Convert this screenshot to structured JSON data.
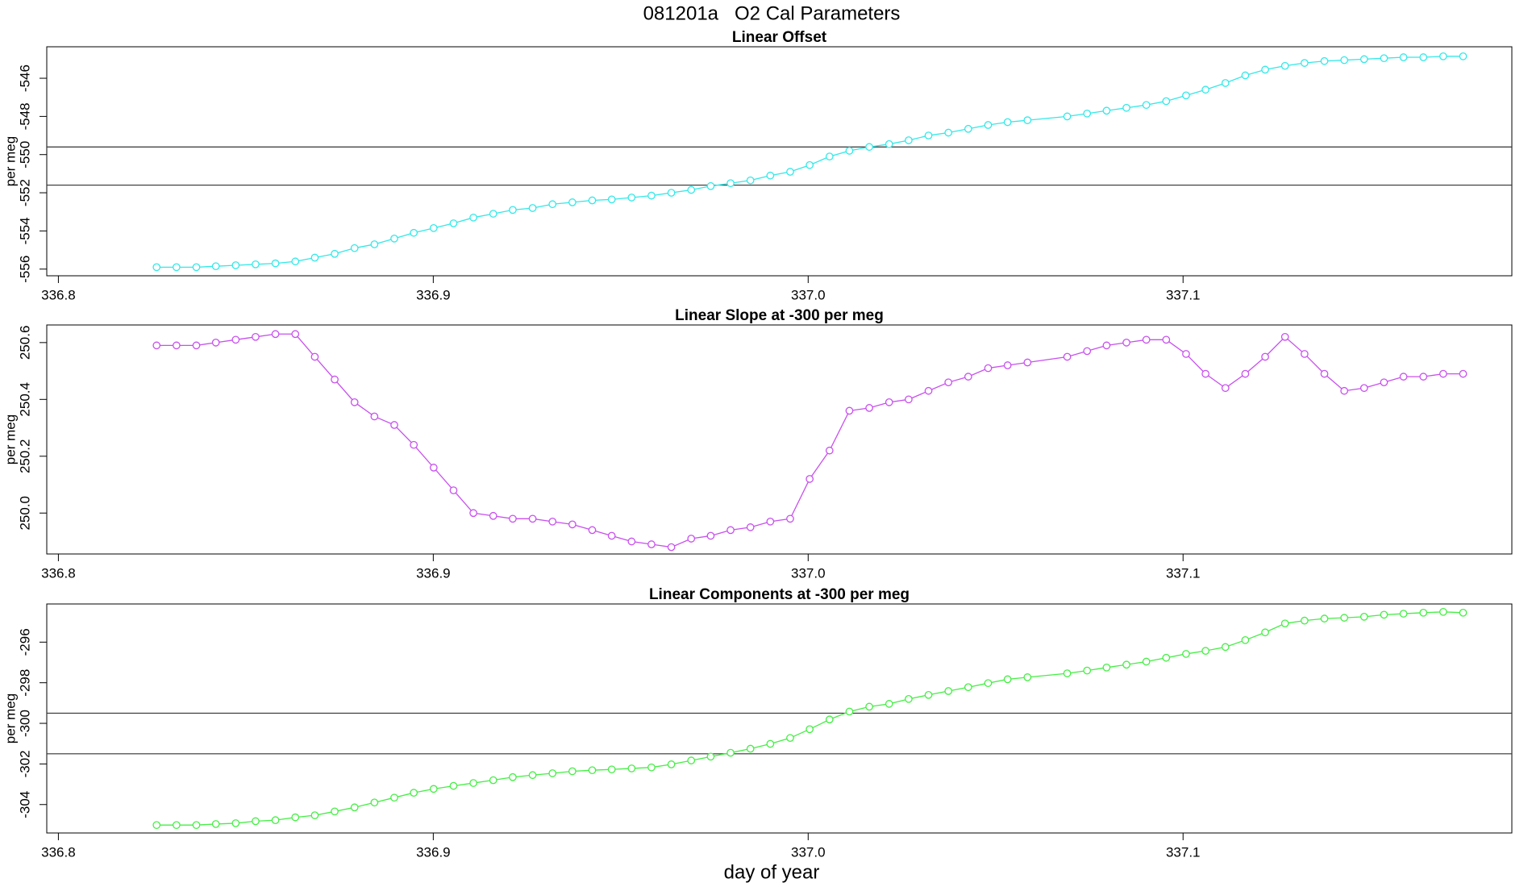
{
  "title": "081201a   O2 Cal Parameters",
  "xlabel": "day of year",
  "chart_data": [
    {
      "type": "line",
      "title": "Linear Offset",
      "ylabel": "per meg",
      "x": [
        336.8262,
        336.8315,
        336.8368,
        336.842,
        336.8473,
        336.8526,
        336.8579,
        336.8632,
        336.8684,
        336.8737,
        336.879,
        336.8843,
        336.8896,
        336.8948,
        336.9001,
        336.9054,
        336.9107,
        336.916,
        336.9212,
        336.9265,
        336.9318,
        336.9371,
        336.9424,
        336.9476,
        336.9529,
        336.9582,
        336.9635,
        336.9688,
        336.974,
        336.9793,
        336.9846,
        336.9899,
        336.9952,
        337.0004,
        337.0057,
        337.011,
        337.0163,
        337.0216,
        337.0268,
        337.0321,
        337.0374,
        337.0427,
        337.048,
        337.0532,
        337.0585,
        337.0691,
        337.0744,
        337.0796,
        337.0849,
        337.0902,
        337.0955,
        337.1008,
        337.106,
        337.1113,
        337.1166,
        337.1219,
        337.1272,
        337.1324,
        337.1377,
        337.143,
        337.1483,
        337.1536,
        337.1588,
        337.1641,
        337.1694,
        337.1747
      ],
      "series": [
        {
          "color": "#33e8e8",
          "values": [
            -555.9,
            -555.9,
            -555.9,
            -555.85,
            -555.8,
            -555.75,
            -555.7,
            -555.6,
            -555.4,
            -555.2,
            -554.9,
            -554.7,
            -554.4,
            -554.1,
            -553.85,
            -553.6,
            -553.3,
            -553.1,
            -552.9,
            -552.8,
            -552.6,
            -552.5,
            -552.4,
            -552.35,
            -552.25,
            -552.15,
            -552.0,
            -551.85,
            -551.65,
            -551.5,
            -551.35,
            -551.1,
            -550.9,
            -550.55,
            -550.1,
            -549.8,
            -549.6,
            -549.45,
            -549.25,
            -549.0,
            -548.85,
            -548.65,
            -548.45,
            -548.3,
            -548.2,
            -548.0,
            -547.85,
            -547.7,
            -547.55,
            -547.4,
            -547.2,
            -546.9,
            -546.6,
            -546.25,
            -545.85,
            -545.55,
            -545.35,
            -545.2,
            -545.1,
            -545.05,
            -545.0,
            -544.95,
            -544.9,
            -544.9,
            -544.85,
            -544.85
          ]
        }
      ],
      "hlines": [
        -549.6,
        -551.6
      ],
      "xlim": [
        336.7969,
        337.1877
      ],
      "xticks": [
        336.8,
        336.9,
        {
          "value": 337,
          "label": "337.0"
        },
        337.1
      ],
      "ylim": [
        -556.35,
        -544.35
      ],
      "yticks": [
        -546,
        -548,
        -550,
        -552,
        -554,
        -556
      ]
    },
    {
      "type": "line",
      "title": "Linear Slope at -300 per meg",
      "ylabel": "per meg",
      "x": [
        336.8262,
        336.8315,
        336.8368,
        336.842,
        336.8473,
        336.8526,
        336.8579,
        336.8632,
        336.8684,
        336.8737,
        336.879,
        336.8843,
        336.8896,
        336.8948,
        336.9001,
        336.9054,
        336.9107,
        336.916,
        336.9212,
        336.9265,
        336.9318,
        336.9371,
        336.9424,
        336.9476,
        336.9529,
        336.9582,
        336.9635,
        336.9688,
        336.974,
        336.9793,
        336.9846,
        336.9899,
        336.9952,
        337.0004,
        337.0057,
        337.011,
        337.0163,
        337.0216,
        337.0268,
        337.0321,
        337.0374,
        337.0427,
        337.048,
        337.0532,
        337.0585,
        337.0691,
        337.0744,
        337.0796,
        337.0849,
        337.0902,
        337.0955,
        337.1008,
        337.106,
        337.1113,
        337.1166,
        337.1219,
        337.1272,
        337.1324,
        337.1377,
        337.143,
        337.1483,
        337.1536,
        337.1588,
        337.1641,
        337.1694,
        337.1747
      ],
      "series": [
        {
          "color": "#c850ee",
          "values": [
            250.59,
            250.59,
            250.59,
            250.6,
            250.61,
            250.62,
            250.63,
            250.63,
            250.55,
            250.47,
            250.39,
            250.34,
            250.31,
            250.24,
            250.16,
            250.08,
            250.0,
            249.99,
            249.98,
            249.98,
            249.97,
            249.96,
            249.94,
            249.92,
            249.9,
            249.89,
            249.88,
            249.91,
            249.92,
            249.94,
            249.95,
            249.97,
            249.98,
            250.12,
            250.22,
            250.36,
            250.37,
            250.39,
            250.4,
            250.43,
            250.46,
            250.48,
            250.51,
            250.52,
            250.53,
            250.55,
            250.57,
            250.59,
            250.6,
            250.61,
            250.61,
            250.56,
            250.49,
            250.44,
            250.49,
            250.55,
            250.62,
            250.56,
            250.49,
            250.43,
            250.44,
            250.46,
            250.48,
            250.48,
            250.49,
            250.49
          ]
        }
      ],
      "xlim": [
        336.7969,
        337.1877
      ],
      "xticks": [
        336.8,
        336.9,
        {
          "value": 337,
          "label": "337.0"
        },
        337.1
      ],
      "ylim": [
        249.856,
        250.662
      ],
      "yticks": [
        {
          "value": 250,
          "label": "250.0"
        },
        250.2,
        250.4,
        250.6
      ]
    },
    {
      "type": "line",
      "title": "Linear Components at -300 per meg",
      "ylabel": "per meg",
      "x": [
        336.8262,
        336.8315,
        336.8368,
        336.842,
        336.8473,
        336.8526,
        336.8579,
        336.8632,
        336.8684,
        336.8737,
        336.879,
        336.8843,
        336.8896,
        336.8948,
        336.9001,
        336.9054,
        336.9107,
        336.916,
        336.9212,
        336.9265,
        336.9318,
        336.9371,
        336.9424,
        336.9476,
        336.9529,
        336.9582,
        336.9635,
        336.9688,
        336.974,
        336.9793,
        336.9846,
        336.9899,
        336.9952,
        337.0004,
        337.0057,
        337.011,
        337.0163,
        337.0216,
        337.0268,
        337.0321,
        337.0374,
        337.0427,
        337.048,
        337.0532,
        337.0585,
        337.0691,
        337.0744,
        337.0796,
        337.0849,
        337.0902,
        337.0955,
        337.1008,
        337.106,
        337.1113,
        337.1166,
        337.1219,
        337.1272,
        337.1324,
        337.1377,
        337.143,
        337.1483,
        337.1536,
        337.1588,
        337.1641,
        337.1694,
        337.1747
      ],
      "series": [
        {
          "color": "#44ee44",
          "values": [
            -305.01,
            -305.01,
            -305.01,
            -304.96,
            -304.92,
            -304.82,
            -304.77,
            -304.63,
            -304.53,
            -304.34,
            -304.14,
            -303.9,
            -303.66,
            -303.42,
            -303.23,
            -303.08,
            -302.94,
            -302.8,
            -302.65,
            -302.55,
            -302.46,
            -302.36,
            -302.31,
            -302.27,
            -302.22,
            -302.17,
            -302.02,
            -301.83,
            -301.64,
            -301.45,
            -301.25,
            -301.01,
            -300.72,
            -300.29,
            -299.81,
            -299.42,
            -299.18,
            -299.04,
            -298.8,
            -298.6,
            -298.41,
            -298.22,
            -298.02,
            -297.83,
            -297.73,
            -297.54,
            -297.4,
            -297.25,
            -297.11,
            -296.96,
            -296.77,
            -296.58,
            -296.43,
            -296.24,
            -295.9,
            -295.52,
            -295.08,
            -294.94,
            -294.84,
            -294.8,
            -294.75,
            -294.65,
            -294.6,
            -294.55,
            -294.51,
            -294.55
          ]
        }
      ],
      "hlines": [
        -299.5,
        -301.5
      ],
      "xlim": [
        336.7969,
        337.1877
      ],
      "xticks": [
        336.8,
        336.9,
        {
          "value": 337,
          "label": "337.0"
        },
        337.1
      ],
      "ylim": [
        -305.4,
        -294.12
      ],
      "yticks": [
        -296,
        -298,
        -300,
        -302,
        -304
      ]
    }
  ]
}
